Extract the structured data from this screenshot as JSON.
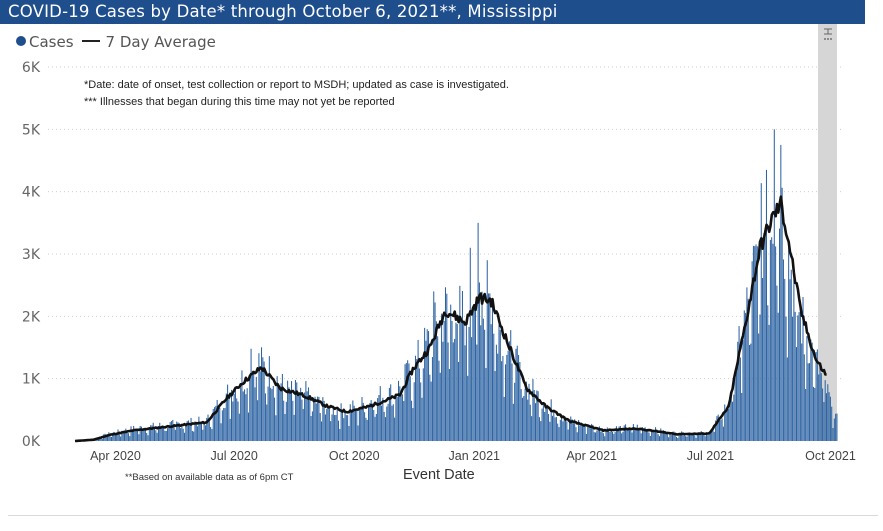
{
  "header": {
    "title": "COVID-19 Cases by Date* through October 6, 2021**, Mississippi"
  },
  "colors": {
    "header_bg": "#1f4e8c",
    "bars": "#2e64a3",
    "average_line": "#111111",
    "shaded_region": "#d6d6d6"
  },
  "legend": {
    "cases_label": "Cases",
    "average_label": "7 Day Average",
    "placement": "top-left"
  },
  "notes": {
    "line1": "*Date: date of onset, test collection or report to MSDH; updated as case is investigated.",
    "line2": "*** Illnesses that began during this time may not yet be reported"
  },
  "footnote": "**Based on available data as of 6pm CT",
  "chart_data": {
    "type": "bar",
    "xlabel": "Event Date",
    "ylabel": "",
    "ylim": [
      0,
      6000
    ],
    "grid": true,
    "ticks": {
      "y": [
        {
          "value": 0,
          "label": "0K"
        },
        {
          "value": 1000,
          "label": "1K"
        },
        {
          "value": 2000,
          "label": "2K"
        },
        {
          "value": 3000,
          "label": "3K"
        },
        {
          "value": 4000,
          "label": "4K"
        },
        {
          "value": 5000,
          "label": "5K"
        },
        {
          "value": 6000,
          "label": "6K"
        }
      ],
      "x": [
        {
          "date": "2020-04-01",
          "label": "Apr 2020"
        },
        {
          "date": "2020-07-01",
          "label": "Jul 2020"
        },
        {
          "date": "2020-10-01",
          "label": "Oct 2020"
        },
        {
          "date": "2021-01-01",
          "label": "Jan 2021"
        },
        {
          "date": "2021-04-01",
          "label": "Apr 2021"
        },
        {
          "date": "2021-07-01",
          "label": "Jul 2021"
        },
        {
          "date": "2021-10-01",
          "label": "Oct 2021"
        }
      ]
    },
    "x_range": [
      "2020-03-01",
      "2021-10-06"
    ],
    "shaded_region": {
      "start": "2021-09-22",
      "end": "2021-10-06",
      "meaning": "Illnesses that began during this time may not yet be reported"
    },
    "series": [
      {
        "name": "Cases",
        "type": "bar",
        "anchors": [
          {
            "date": "2020-03-01",
            "value": 0
          },
          {
            "date": "2020-03-15",
            "value": 30
          },
          {
            "date": "2020-03-28",
            "value": 120
          },
          {
            "date": "2020-04-15",
            "value": 200
          },
          {
            "date": "2020-05-15",
            "value": 270
          },
          {
            "date": "2020-06-10",
            "value": 320
          },
          {
            "date": "2020-06-25",
            "value": 750
          },
          {
            "date": "2020-07-08",
            "value": 1000
          },
          {
            "date": "2020-07-20",
            "value": 1250
          },
          {
            "date": "2020-07-30",
            "value": 1100
          },
          {
            "date": "2020-08-10",
            "value": 800
          },
          {
            "date": "2020-08-25",
            "value": 760
          },
          {
            "date": "2020-09-05",
            "value": 600
          },
          {
            "date": "2020-09-20",
            "value": 480
          },
          {
            "date": "2020-10-05",
            "value": 560
          },
          {
            "date": "2020-10-20",
            "value": 720
          },
          {
            "date": "2020-11-01",
            "value": 780
          },
          {
            "date": "2020-11-15",
            "value": 1150
          },
          {
            "date": "2020-11-30",
            "value": 1700
          },
          {
            "date": "2020-12-10",
            "value": 2100
          },
          {
            "date": "2020-12-25",
            "value": 2000
          },
          {
            "date": "2021-01-05",
            "value": 2500
          },
          {
            "date": "2021-01-12",
            "value": 2350
          },
          {
            "date": "2021-01-25",
            "value": 1600
          },
          {
            "date": "2021-02-10",
            "value": 900
          },
          {
            "date": "2021-02-25",
            "value": 600
          },
          {
            "date": "2021-03-15",
            "value": 330
          },
          {
            "date": "2021-04-10",
            "value": 190
          },
          {
            "date": "2021-05-05",
            "value": 230
          },
          {
            "date": "2021-06-05",
            "value": 120
          },
          {
            "date": "2021-06-30",
            "value": 130
          },
          {
            "date": "2021-07-15",
            "value": 600
          },
          {
            "date": "2021-07-28",
            "value": 2000
          },
          {
            "date": "2021-08-08",
            "value": 3200
          },
          {
            "date": "2021-08-18",
            "value": 3900
          },
          {
            "date": "2021-08-25",
            "value": 3700
          },
          {
            "date": "2021-09-05",
            "value": 2200
          },
          {
            "date": "2021-09-18",
            "value": 1400
          },
          {
            "date": "2021-10-06",
            "value": 350
          }
        ],
        "spikes": [
          {
            "date": "2020-07-14",
            "value": 1480
          },
          {
            "date": "2020-11-10",
            "value": 1250
          },
          {
            "date": "2020-12-01",
            "value": 2400
          },
          {
            "date": "2020-12-29",
            "value": 3100
          },
          {
            "date": "2021-01-04",
            "value": 3500
          },
          {
            "date": "2021-01-11",
            "value": 2900
          },
          {
            "date": "2021-08-13",
            "value": 4350
          },
          {
            "date": "2021-08-19",
            "value": 5000
          },
          {
            "date": "2021-08-24",
            "value": 4750
          }
        ]
      },
      {
        "name": "7 Day Average",
        "type": "line",
        "end": "2021-09-28",
        "points": [
          {
            "date": "2020-03-01",
            "value": 0
          },
          {
            "date": "2020-03-15",
            "value": 20
          },
          {
            "date": "2020-03-28",
            "value": 100
          },
          {
            "date": "2020-04-15",
            "value": 170
          },
          {
            "date": "2020-05-15",
            "value": 240
          },
          {
            "date": "2020-06-10",
            "value": 300
          },
          {
            "date": "2020-06-25",
            "value": 680
          },
          {
            "date": "2020-07-08",
            "value": 950
          },
          {
            "date": "2020-07-22",
            "value": 1180
          },
          {
            "date": "2020-08-05",
            "value": 850
          },
          {
            "date": "2020-08-25",
            "value": 720
          },
          {
            "date": "2020-09-10",
            "value": 560
          },
          {
            "date": "2020-09-25",
            "value": 470
          },
          {
            "date": "2020-10-10",
            "value": 540
          },
          {
            "date": "2020-10-25",
            "value": 650
          },
          {
            "date": "2020-11-05",
            "value": 740
          },
          {
            "date": "2020-11-15",
            "value": 1150
          },
          {
            "date": "2020-11-28",
            "value": 1500
          },
          {
            "date": "2020-12-10",
            "value": 2100
          },
          {
            "date": "2020-12-25",
            "value": 1900
          },
          {
            "date": "2021-01-05",
            "value": 2300
          },
          {
            "date": "2021-01-14",
            "value": 2250
          },
          {
            "date": "2021-01-28",
            "value": 1500
          },
          {
            "date": "2021-02-10",
            "value": 850
          },
          {
            "date": "2021-02-25",
            "value": 550
          },
          {
            "date": "2021-03-15",
            "value": 320
          },
          {
            "date": "2021-04-10",
            "value": 170
          },
          {
            "date": "2021-05-05",
            "value": 200
          },
          {
            "date": "2021-06-05",
            "value": 110
          },
          {
            "date": "2021-06-30",
            "value": 120
          },
          {
            "date": "2021-07-15",
            "value": 550
          },
          {
            "date": "2021-07-28",
            "value": 1900
          },
          {
            "date": "2021-08-08",
            "value": 3100
          },
          {
            "date": "2021-08-18",
            "value": 3600
          },
          {
            "date": "2021-08-24",
            "value": 3800
          },
          {
            "date": "2021-08-30",
            "value": 3200
          },
          {
            "date": "2021-09-08",
            "value": 2100
          },
          {
            "date": "2021-09-20",
            "value": 1300
          },
          {
            "date": "2021-09-28",
            "value": 1050
          }
        ]
      }
    ]
  }
}
